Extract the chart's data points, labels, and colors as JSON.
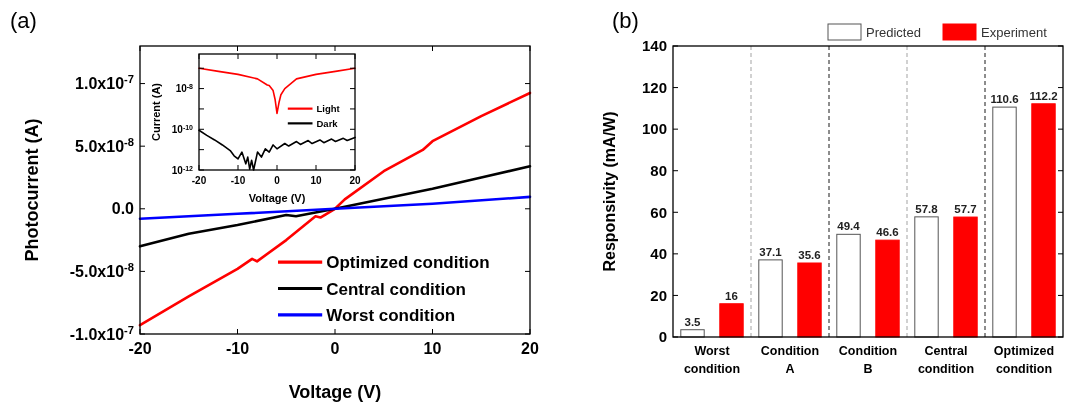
{
  "chart_data": [
    {
      "type": "line",
      "title": "(a)",
      "xlabel": "Voltage (V)",
      "ylabel": "Photocurrent (A)",
      "xlim": [
        -20,
        20
      ],
      "xticks": [
        -20,
        -10,
        0,
        10,
        20
      ],
      "ylim": [
        -1e-07,
        1.3e-07
      ],
      "yticks": [
        {
          "value": -1e-07,
          "label": "-1.0x10$^{-7}$"
        },
        {
          "value": -5e-08,
          "label": "-5.0x10$^{-8}$"
        },
        {
          "value": 0,
          "label": "0.0"
        },
        {
          "value": 5e-08,
          "label": "5.0x10$^{-8}$"
        },
        {
          "value": 1e-07,
          "label": "1.0x10$^{-7}$"
        }
      ],
      "legend": "bottom right",
      "series": [
        {
          "name": "Optimized condition",
          "color": "#ff0000",
          "x": [
            -20,
            -15,
            -10,
            -8.5,
            -8,
            -5,
            -2,
            -1.5,
            0,
            1,
            5,
            9,
            10,
            15,
            20
          ],
          "values": [
            -9.3e-08,
            -7e-08,
            -4.8e-08,
            -4e-08,
            -4.2e-08,
            -2.5e-08,
            -6e-09,
            -7e-09,
            0,
            7.5e-09,
            3e-08,
            4.7e-08,
            5.4e-08,
            7.4e-08,
            9.25e-08
          ]
        },
        {
          "name": "Central condition",
          "color": "#000000",
          "x": [
            -20,
            -15,
            -10,
            -5,
            -4,
            -2,
            0,
            5,
            10,
            15,
            20
          ],
          "values": [
            -3e-08,
            -2e-08,
            -1.3e-08,
            -5e-09,
            -6e-09,
            -3e-09,
            0,
            8e-09,
            1.6e-08,
            2.5e-08,
            3.4e-08
          ]
        },
        {
          "name": "Worst condition",
          "color": "#0000ff",
          "x": [
            -20,
            -10,
            0,
            10,
            20
          ],
          "values": [
            -8e-09,
            -4e-09,
            0,
            4e-09,
            9.5e-09
          ]
        }
      ]
    },
    {
      "type": "line",
      "xlabel": "Voltage (V)",
      "ylabel": "Current (A)",
      "log": true,
      "xlim": [
        -20,
        20
      ],
      "xticks": [
        -20,
        -10,
        0,
        10,
        20
      ],
      "ylim": [
        1e-12,
        5e-07
      ],
      "yticks": [
        {
          "value": 1e-12,
          "label": "10$^{-12}$"
        },
        {
          "value": 1e-11,
          "label": null
        },
        {
          "value": 1e-10,
          "label": "10$^{-10}$"
        },
        {
          "value": 1e-09,
          "label": null
        },
        {
          "value": 1e-08,
          "label": "10$^{-8}$"
        },
        {
          "value": 1e-07,
          "label": null
        }
      ],
      "legend": "right",
      "series": [
        {
          "name": "Light",
          "color": "#ff0000",
          "x": [
            -20,
            -15,
            -10,
            -5,
            -2.5,
            -2,
            -1,
            -0.5,
            0,
            0.5,
            1,
            2,
            5,
            10,
            15,
            20
          ],
          "values": [
            1e-07,
            7e-08,
            5e-08,
            3e-08,
            1.5e-08,
            1.4e-08,
            8e-09,
            3e-09,
            6e-10,
            2e-09,
            5e-09,
            1e-08,
            3e-08,
            5e-08,
            7e-08,
            1e-07
          ]
        },
        {
          "name": "Dark",
          "color": "#000000",
          "x": [
            -20,
            -18,
            -16,
            -14,
            -12,
            -11,
            -10,
            -9,
            -8,
            -7.5,
            -7,
            -6.5,
            -6,
            -5,
            -4,
            -3,
            -2,
            -1,
            0,
            2,
            3,
            5,
            6,
            8,
            9,
            11,
            12,
            14,
            15,
            17,
            18,
            20
          ],
          "values": [
            9e-11,
            5e-11,
            3e-11,
            1.7e-11,
            9e-12,
            5e-12,
            3.5e-12,
            7.6e-12,
            2e-12,
            4.3e-12,
            1.1e-12,
            3e-12,
            1e-12,
            7.6e-12,
            4.3e-12,
            1.1e-11,
            7.6e-12,
            1.7e-11,
            1.1e-11,
            2e-11,
            1.5e-11,
            2.5e-11,
            1.8e-11,
            2.8e-11,
            2e-11,
            3e-11,
            2.2e-11,
            3.3e-11,
            2.5e-11,
            3.6e-11,
            2.8e-11,
            4e-11
          ]
        }
      ]
    },
    {
      "type": "bar",
      "title": "(b)",
      "ylabel": "Responsivity (mA/W)",
      "categories": [
        "Worst condition",
        "Condition A",
        "Condition B",
        "Central condition",
        "Optimized condition"
      ],
      "ylim": [
        0,
        140
      ],
      "yticks": [
        0,
        20,
        40,
        60,
        80,
        100,
        120,
        140
      ],
      "grid": "x",
      "legend": "top right",
      "data_labels": true,
      "series": [
        {
          "name": "Predicted",
          "color": "#ffffff",
          "values": [
            3.5,
            37.1,
            49.4,
            57.8,
            110.6
          ]
        },
        {
          "name": "Experiment",
          "color": "#ff0000",
          "values": [
            16,
            35.6,
            46.6,
            57.7,
            112.2
          ]
        }
      ]
    }
  ]
}
